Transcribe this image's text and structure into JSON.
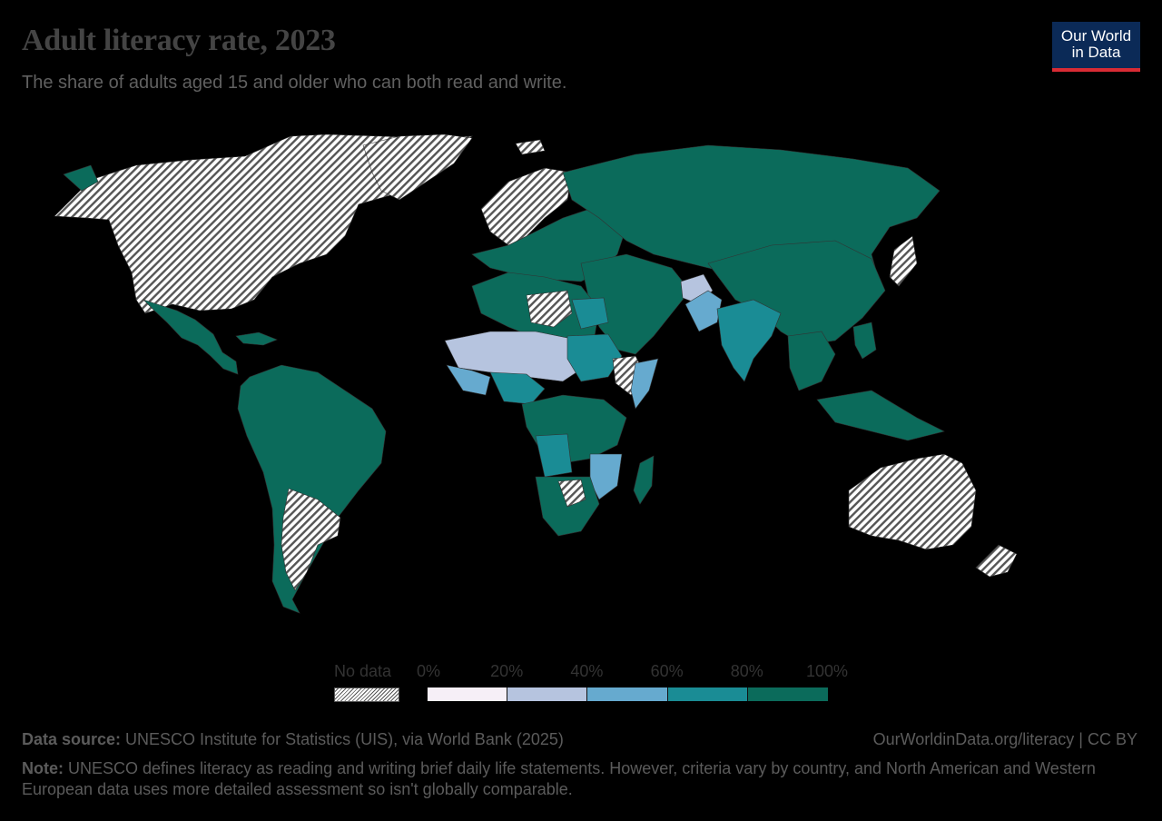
{
  "header": {
    "title": "Adult literacy rate, 2023",
    "subtitle": "The share of adults aged 15 and older who can both read and write."
  },
  "logo": {
    "line1": "Our World",
    "line2": "in Data"
  },
  "legend": {
    "no_data_label": "No data",
    "ticks": [
      "0%",
      "20%",
      "40%",
      "60%",
      "80%",
      "100%"
    ],
    "bins": [
      {
        "from": 0,
        "to": 20,
        "color": "#f6eff7"
      },
      {
        "from": 20,
        "to": 40,
        "color": "#b6c4df"
      },
      {
        "from": 40,
        "to": 60,
        "color": "#66aacf"
      },
      {
        "from": 60,
        "to": 80,
        "color": "#1a8c95"
      },
      {
        "from": 80,
        "to": 100,
        "color": "#0b6b5b"
      }
    ]
  },
  "colors": {
    "no_data_hatch": "#d9d9d9",
    "high": "#0b6b5b",
    "mid_high": "#1a8c95",
    "mid": "#66aacf",
    "low": "#b6c4df",
    "very_low": "#f6eff7"
  },
  "footer": {
    "source_label": "Data source:",
    "source_text": " UNESCO Institute for Statistics (UIS), via World Bank (2025)",
    "url": "OurWorldinData.org/literacy | CC BY",
    "note_label": "Note:",
    "note_text": " UNESCO defines literacy as reading and writing brief daily life statements. However, criteria vary by country, and North American and Western European data uses more detailed assessment so isn't globally comparable."
  }
}
